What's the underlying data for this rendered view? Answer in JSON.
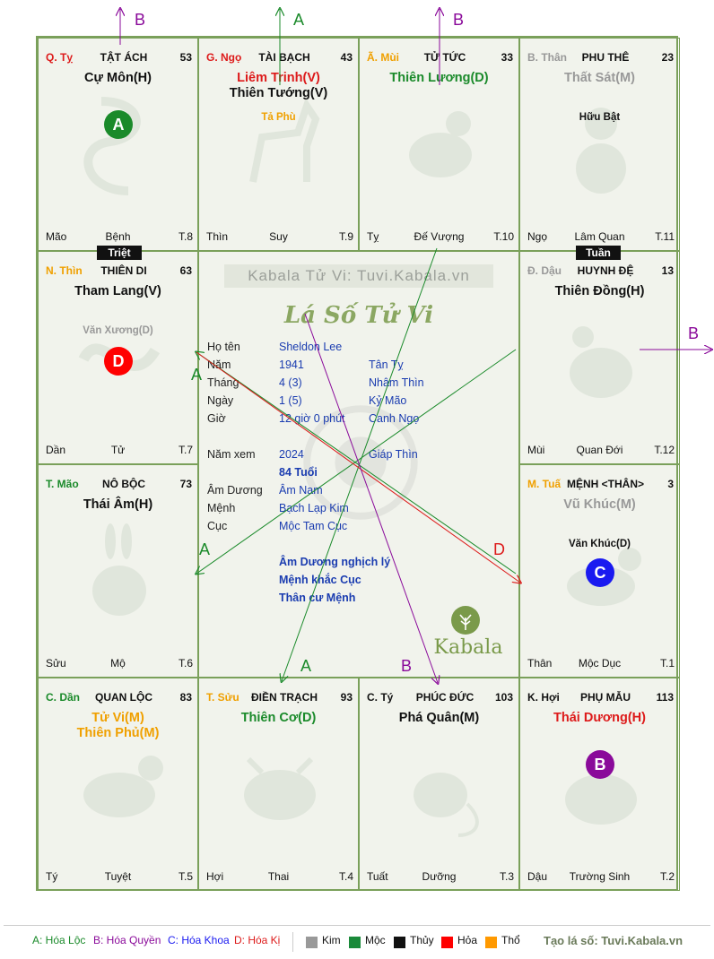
{
  "watermark": "Kabala Tử Vi: Tuvi.Kabala.vn",
  "center_title": "Lá Số Tử Vi",
  "logo_text": "Kabala",
  "cells": {
    "ty": {
      "can": "Q. Tỵ",
      "house": "TẬT ÁCH",
      "age": "53",
      "main1": "Cự Môn(H)",
      "main2": "",
      "aux": "",
      "bl": "Mão",
      "bm": "Bệnh",
      "br": "T.8"
    },
    "ngo": {
      "can": "G. Ngọ",
      "house": "TÀI BẠCH",
      "age": "43",
      "main1": "Liêm Trinh(V)",
      "main2": "Thiên Tướng(V)",
      "aux": "Tả Phù",
      "bl": "Thìn",
      "bm": "Suy",
      "br": "T.9"
    },
    "mui": {
      "can": "Ã. Mùi",
      "house": "TỬ TỨC",
      "age": "33",
      "main1": "Thiên Lương(D)",
      "main2": "",
      "aux": "",
      "bl": "Tỵ",
      "bm": "Đế Vượng",
      "br": "T.10"
    },
    "than": {
      "can": "B. Thân",
      "house": "PHU THÊ",
      "age": "23",
      "main1": "Thất Sát(M)",
      "main2": "",
      "aux": "Hữu Bật",
      "bl": "Ngọ",
      "bm": "Lâm Quan",
      "br": "T.11"
    },
    "thin": {
      "can": "N. Thìn",
      "house": "THIÊN DI",
      "age": "63",
      "main1": "Tham Lang(V)",
      "main2": "",
      "aux": "Văn Xương(D)",
      "bl": "Dần",
      "bm": "Tử",
      "br": "T.7"
    },
    "dau": {
      "can": "Đ. Dậu",
      "house": "HUYNH ĐỆ",
      "age": "13",
      "main1": "Thiên Đồng(H)",
      "main2": "",
      "aux": "",
      "bl": "Mùi",
      "bm": "Quan Đới",
      "br": "T.12"
    },
    "mao": {
      "can": "T. Mão",
      "house": "NÔ BỘC",
      "age": "73",
      "main1": "Thái Âm(H)",
      "main2": "",
      "aux": "",
      "bl": "Sửu",
      "bm": "Mộ",
      "br": "T.6"
    },
    "tuat": {
      "can": "M. Tuấ",
      "house": "MỆNH <THÂN>",
      "age": "3",
      "main1": "Vũ Khúc(M)",
      "main2": "",
      "aux": "Văn Khúc(D)",
      "bl": "Thân",
      "bm": "Mộc Dục",
      "br": "T.1"
    },
    "dan": {
      "can": "C. Dần",
      "house": "QUAN LỘC",
      "age": "83",
      "main1": "Tử Vi(M)",
      "main2": "Thiên Phủ(M)",
      "aux": "",
      "bl": "Tý",
      "bm": "Tuyệt",
      "br": "T.5"
    },
    "suu": {
      "can": "T. Sửu",
      "house": "ĐIỀN TRẠCH",
      "age": "93",
      "main1": "Thiên Cơ(D)",
      "main2": "",
      "aux": "",
      "bl": "Hợi",
      "bm": "Thai",
      "br": "T.4"
    },
    "tyrat": {
      "can": "C. Tý",
      "house": "PHÚC ĐỨC",
      "age": "103",
      "main1": "Phá Quân(M)",
      "main2": "",
      "aux": "",
      "bl": "Tuất",
      "bm": "Dưỡng",
      "br": "T.3"
    },
    "hoi": {
      "can": "K. Hợi",
      "house": "PHỤ MẪU",
      "age": "113",
      "main1": "Thái Dương(H)",
      "main2": "",
      "aux": "",
      "bl": "Dậu",
      "bm": "Trường Sinh",
      "br": "T.2"
    }
  },
  "tags": {
    "triet": "Triệt",
    "tuan": "Tuần"
  },
  "circles": {
    "a": "A",
    "b": "B",
    "c": "C",
    "d": "D"
  },
  "info": {
    "ho_ten_lbl": "Họ tên",
    "ho_ten": "Sheldon Lee",
    "nam_lbl": "Năm",
    "nam": "1941",
    "nam_cc": "Tân Tỵ",
    "thang_lbl": "Tháng",
    "thang": "4  (3)",
    "thang_cc": "Nhâm Thìn",
    "ngay_lbl": "Ngày",
    "ngay": "1  (5)",
    "ngay_cc": "Kỷ Mão",
    "gio_lbl": "Giờ",
    "gio": "12 giờ 0 phút",
    "gio_cc": "Canh Ngọ",
    "namxem_lbl": "Năm xem",
    "namxem": "2024",
    "namxem_cc": "Giáp Thìn",
    "tuoi": "84 Tuổi",
    "amduong_lbl": "Âm Dương",
    "amduong": "Âm Nam",
    "menh_lbl": "Mệnh",
    "menh": "Bạch Lạp Kim",
    "cuc_lbl": "Cục",
    "cuc": "Mộc Tam Cục",
    "note1": "Âm Dương nghịch lý",
    "note2": "Mệnh khắc Cục",
    "note3": "Thân cư Mệnh"
  },
  "arrow_labels": {
    "top1": "B",
    "top2": "A",
    "top3": "B",
    "right": "B",
    "a1": "A",
    "a2": "A",
    "a3": "A",
    "d": "D",
    "b": "B"
  },
  "legend": {
    "a": "A: Hóa Lộc",
    "b": "B: Hóa Quyền",
    "c": "C: Hóa Khoa",
    "d": "D: Hóa Kị",
    "kim": "Kim",
    "moc": "Mộc",
    "thuy": "Thủy",
    "hoa": "Hỏa",
    "tho": "Thổ",
    "site": "Tạo lá số: Tuvi.Kabala.vn"
  },
  "colors": {
    "kim": "#999999",
    "moc": "#1a8a3a",
    "thuy": "#111111",
    "hoa": "#ff0000",
    "tho": "#ff9900",
    "green": "#1a8a2a",
    "purple": "#8a0a9a",
    "red": "#dd1a1a",
    "blue": "#1a1af0"
  }
}
